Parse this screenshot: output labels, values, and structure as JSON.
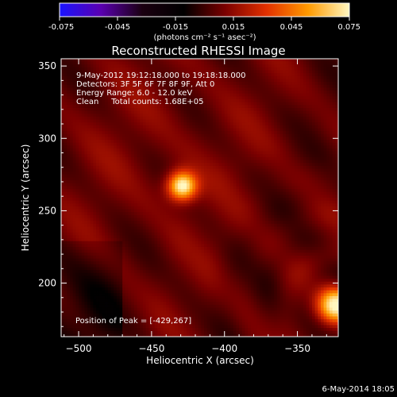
{
  "colorbar": {
    "tick_labels": [
      "-0.075",
      "-0.045",
      "-0.015",
      "0.015",
      "0.045",
      "0.075"
    ],
    "range": [
      -0.075,
      0.075
    ],
    "unit_label": "(photons cm⁻² s⁻¹ asec⁻²)",
    "colormap": "rhessi-bipolar",
    "colors": [
      "#1a14ff",
      "#5a00b0",
      "#1a0010",
      "#000000",
      "#7a0000",
      "#e23000",
      "#ff9a00",
      "#fff7c0"
    ]
  },
  "chart_data": {
    "type": "heatmap",
    "title": "Reconstructed RHESSI Image",
    "xlabel": "Heliocentric X (arcsec)",
    "ylabel": "Heliocentric Y (arcsec)",
    "xlim": [
      -512,
      -322
    ],
    "ylim": [
      163,
      355
    ],
    "x_ticks": [
      -500,
      -450,
      -400,
      -350
    ],
    "y_ticks": [
      200,
      250,
      300,
      350
    ],
    "x_tick_labels": [
      "−500",
      "−450",
      "−400",
      "−350"
    ],
    "y_tick_labels": [
      "200",
      "250",
      "300",
      "350"
    ],
    "value_range": [
      -0.075,
      0.075
    ],
    "sources": [
      {
        "x": -429,
        "y": 267,
        "peak": 0.075,
        "sigma": 7
      },
      {
        "x": -323,
        "y": 185,
        "peak": 0.065,
        "sigma": 8
      }
    ],
    "annotations": [
      "9-May-2012 19:12:18.000 to 19:18:18.000",
      "Detectors: 3F 5F 6F 7F 8F 9F, Att 0",
      "Energy Range: 6.0 - 12.0 keV",
      "Clean     Total counts: 1.68E+05"
    ],
    "peak_label": "Position of Peak = [-429,267]"
  },
  "footer": {
    "timestamp": "6-May-2014 18:05"
  }
}
